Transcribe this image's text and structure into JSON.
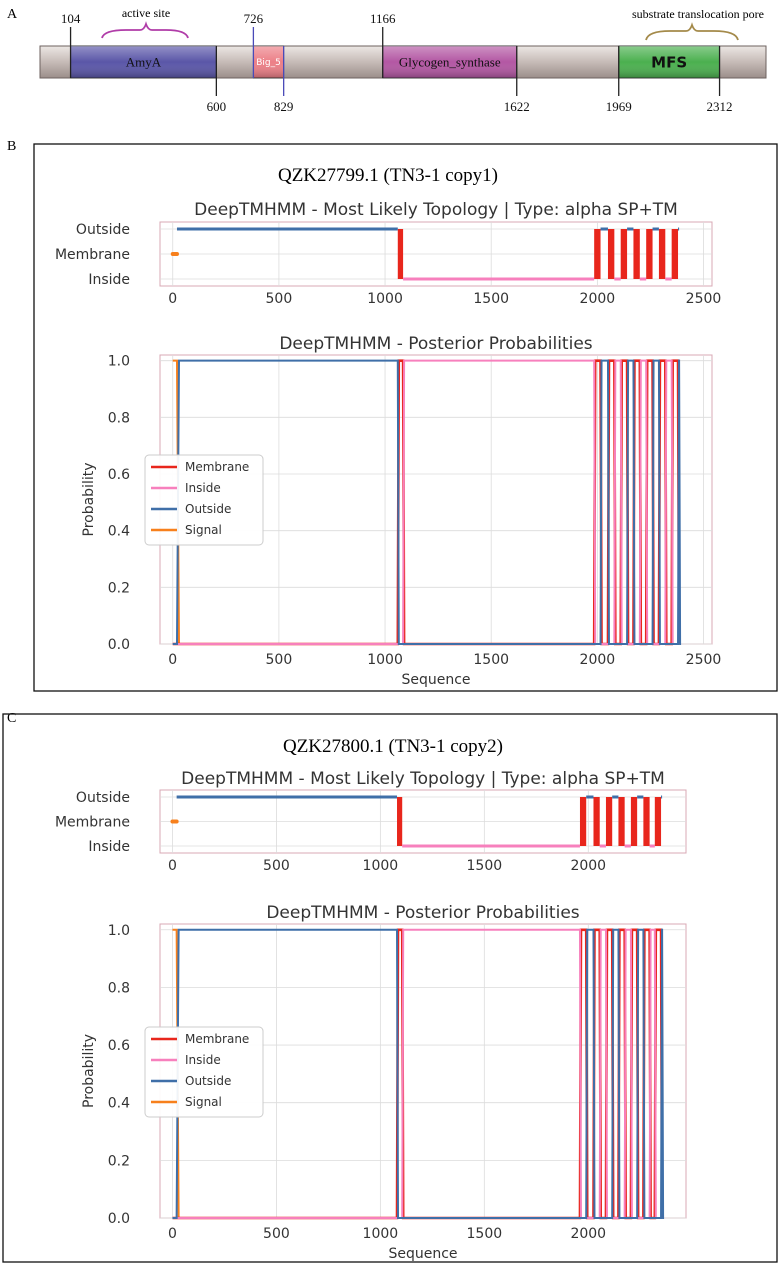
{
  "panel_labels": {
    "a": "A",
    "b": "B",
    "c": "C"
  },
  "domain_map": {
    "seq_start": 0,
    "seq_end": 2470,
    "domains": [
      {
        "label": "AmyA",
        "start": 104,
        "end": 600,
        "color": "#5a56a8",
        "label_font": "serif"
      },
      {
        "label": "Big_5",
        "start": 726,
        "end": 829,
        "color": "#ec7f87",
        "label_font": "sans"
      },
      {
        "label": "Glycogen_synthase",
        "start": 1166,
        "end": 1622,
        "color": "#b357a3",
        "label_font": "serif"
      },
      {
        "label": "MFS",
        "start": 1969,
        "end": 2312,
        "color": "#4bb04f",
        "label_font": "sansbold"
      }
    ],
    "ticks_above": [
      "104",
      "726",
      "1166"
    ],
    "ticks_below": [
      "600",
      "829",
      "1622",
      "1969",
      "2312"
    ],
    "annotations": {
      "active_site": "active site",
      "substrate": "substrate translocation pore"
    }
  },
  "chart_data": [
    {
      "type": "line",
      "panel": "B",
      "header": "QZK27799.1  (TN3-1 copy1)",
      "topology": {
        "title": "DeepTMHMM - Most Likely Topology | Type: alpha SP+TM",
        "y_categories": [
          "Outside",
          "Membrane",
          "Inside"
        ],
        "x_ticks": [
          "0",
          "500",
          "1000",
          "1500",
          "2000",
          "2500"
        ],
        "xlim": [
          -60,
          2540
        ],
        "x_tick_values": [
          0,
          500,
          1000,
          1500,
          2000,
          2500
        ],
        "signal_range": [
          0,
          20
        ],
        "outside_to": 1060,
        "membrane_block": [
          1060,
          1085
        ],
        "inside_range": [
          1085,
          1985
        ],
        "tm_helices": [
          [
            1985,
            2015
          ],
          [
            2050,
            2080
          ],
          [
            2110,
            2140
          ],
          [
            2170,
            2200
          ],
          [
            2230,
            2260
          ],
          [
            2290,
            2320
          ],
          [
            2350,
            2380
          ]
        ],
        "seq_end": 2385
      },
      "posterior": {
        "title": "DeepTMHMM - Posterior Probabilities",
        "ylabel": "Probability",
        "xlabel": "Sequence",
        "y_ticks": [
          "0.0",
          "0.2",
          "0.4",
          "0.6",
          "0.8",
          "1.0"
        ],
        "x_ticks": [
          "0",
          "500",
          "1000",
          "1500",
          "2000",
          "2500"
        ],
        "ylim": [
          0,
          1.02
        ],
        "legend": [
          {
            "name": "Membrane",
            "color": "#e8261c"
          },
          {
            "name": "Inside",
            "color": "#f780bd"
          },
          {
            "name": "Outside",
            "color": "#3f6fa8"
          },
          {
            "name": "Signal",
            "color": "#f7801c"
          }
        ],
        "series_colors": {
          "membrane": "#e8261c",
          "inside": "#f780bd",
          "outside": "#3f6fa8",
          "signal": "#f7801c"
        }
      }
    },
    {
      "type": "line",
      "panel": "C",
      "header": "QZK27800.1 (TN3-1 copy2)",
      "topology": {
        "title": "DeepTMHMM - Most Likely Topology | Type: alpha SP+TM",
        "y_categories": [
          "Outside",
          "Membrane",
          "Inside"
        ],
        "x_ticks": [
          "0",
          "500",
          "1000",
          "1500",
          "2000"
        ],
        "xlim": [
          -60,
          2470
        ],
        "x_tick_values": [
          0,
          500,
          1000,
          1500,
          2000
        ],
        "signal_range": [
          0,
          20
        ],
        "outside_to": 1080,
        "membrane_block": [
          1080,
          1105
        ],
        "inside_range": [
          1105,
          1960
        ],
        "tm_helices": [
          [
            1960,
            1990
          ],
          [
            2025,
            2055
          ],
          [
            2085,
            2115
          ],
          [
            2145,
            2175
          ],
          [
            2205,
            2235
          ],
          [
            2265,
            2295
          ],
          [
            2320,
            2350
          ]
        ],
        "seq_end": 2355
      },
      "posterior": {
        "title": "DeepTMHMM - Posterior Probabilities",
        "ylabel": "Probability",
        "xlabel": "Sequence",
        "y_ticks": [
          "0.0",
          "0.2",
          "0.4",
          "0.6",
          "0.8",
          "1.0"
        ],
        "x_ticks": [
          "0",
          "500",
          "1000",
          "1500",
          "2000"
        ],
        "ylim": [
          0,
          1.02
        ],
        "legend": [
          {
            "name": "Membrane",
            "color": "#e8261c"
          },
          {
            "name": "Inside",
            "color": "#f780bd"
          },
          {
            "name": "Outside",
            "color": "#3f6fa8"
          },
          {
            "name": "Signal",
            "color": "#f7801c"
          }
        ],
        "series_colors": {
          "membrane": "#e8261c",
          "inside": "#f780bd",
          "outside": "#3f6fa8",
          "signal": "#f7801c"
        }
      }
    }
  ]
}
